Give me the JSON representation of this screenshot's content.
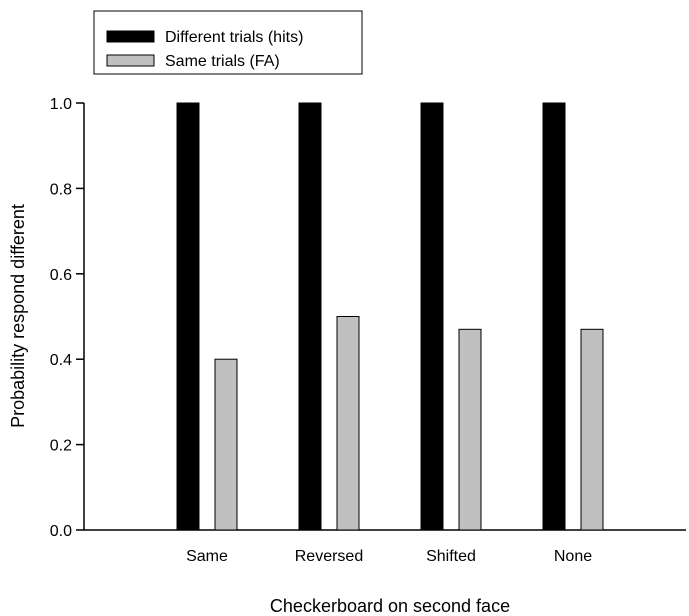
{
  "chart_data": {
    "type": "bar",
    "categories": [
      "Same",
      "Reversed",
      "Shifted",
      "None"
    ],
    "series": [
      {
        "name": "Different trials (hits)",
        "values": [
          1.0,
          1.0,
          1.0,
          1.0
        ],
        "color": "#000000"
      },
      {
        "name": "Same trials (FA)",
        "values": [
          0.4,
          0.5,
          0.47,
          0.47
        ],
        "color": "#c0c0c0"
      }
    ],
    "xlabel": "Checkerboard on second face",
    "ylabel": "Probability respond different",
    "ylim": [
      0,
      1
    ],
    "yticks": [
      "0.0",
      "0.2",
      "0.4",
      "0.6",
      "0.8",
      "1.0"
    ],
    "grid": false,
    "legend_position": "top-left"
  }
}
